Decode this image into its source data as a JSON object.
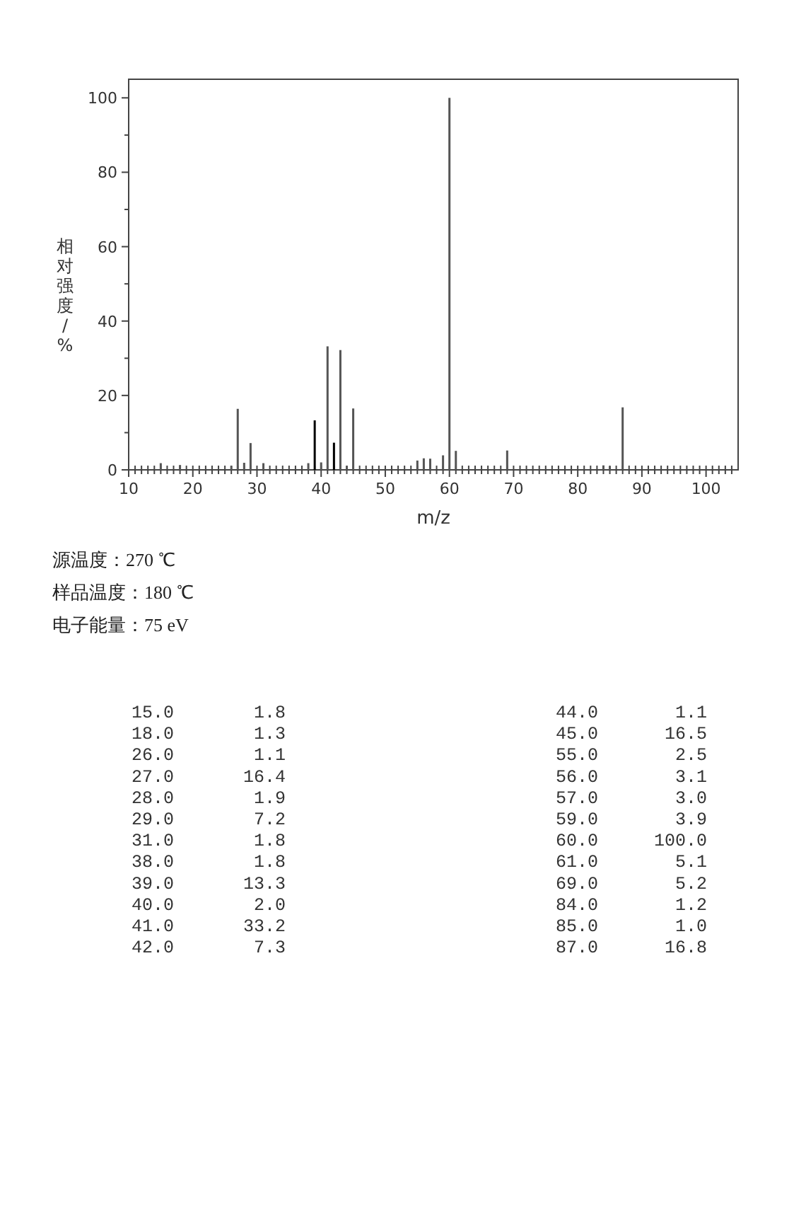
{
  "chart_data": {
    "type": "bar",
    "xlabel": "m/z",
    "ylabel": "相对强度/%",
    "x": [
      15,
      18,
      26,
      27,
      28,
      29,
      31,
      38,
      39,
      40,
      41,
      42,
      43,
      44,
      45,
      55,
      56,
      57,
      59,
      60,
      61,
      69,
      84,
      85,
      87
    ],
    "values": [
      1.8,
      1.3,
      1.1,
      16.4,
      1.9,
      7.2,
      1.8,
      1.8,
      13.3,
      2.0,
      33.2,
      7.3,
      32.2,
      1.1,
      16.5,
      2.5,
      3.1,
      3.0,
      3.9,
      100.0,
      5.1,
      5.2,
      1.2,
      1.0,
      16.8
    ],
    "colors": [
      "#555555",
      "#555555",
      "#555555",
      "#555555",
      "#555555",
      "#555555",
      "#555555",
      "#555555",
      "#000000",
      "#555555",
      "#555555",
      "#000000",
      "#555555",
      "#555555",
      "#555555",
      "#555555",
      "#555555",
      "#555555",
      "#555555",
      "#555555",
      "#555555",
      "#555555",
      "#555555",
      "#555555",
      "#555555"
    ],
    "xlim": [
      10,
      105
    ],
    "xticks": [
      10,
      {
        "value": 11,
        "label": null
      },
      {
        "value": 12,
        "label": null
      },
      {
        "value": 13,
        "label": null
      },
      {
        "value": 14,
        "label": null
      },
      {
        "value": 15,
        "label": null
      },
      {
        "value": 16,
        "label": null
      },
      {
        "value": 17,
        "label": null
      },
      {
        "value": 18,
        "label": null
      },
      {
        "value": 19,
        "label": null
      },
      20,
      {
        "value": 21,
        "label": null
      },
      {
        "value": 22,
        "label": null
      },
      {
        "value": 23,
        "label": null
      },
      {
        "value": 24,
        "label": null
      },
      {
        "value": 25,
        "label": null
      },
      {
        "value": 26,
        "label": null
      },
      {
        "value": 27,
        "label": null
      },
      {
        "value": 28,
        "label": null
      },
      {
        "value": 29,
        "label": null
      },
      30,
      {
        "value": 31,
        "label": null
      },
      {
        "value": 32,
        "label": null
      },
      {
        "value": 33,
        "label": null
      },
      {
        "value": 34,
        "label": null
      },
      {
        "value": 35,
        "label": null
      },
      {
        "value": 36,
        "label": null
      },
      {
        "value": 37,
        "label": null
      },
      {
        "value": 38,
        "label": null
      },
      {
        "value": 39,
        "label": null
      },
      40,
      {
        "value": 41,
        "label": null
      },
      {
        "value": 42,
        "label": null
      },
      {
        "value": 43,
        "label": null
      },
      {
        "value": 44,
        "label": null
      },
      {
        "value": 45,
        "label": null
      },
      {
        "value": 46,
        "label": null
      },
      {
        "value": 47,
        "label": null
      },
      {
        "value": 48,
        "label": null
      },
      {
        "value": 49,
        "label": null
      },
      50,
      {
        "value": 51,
        "label": null
      },
      {
        "value": 52,
        "label": null
      },
      {
        "value": 53,
        "label": null
      },
      {
        "value": 54,
        "label": null
      },
      {
        "value": 55,
        "label": null
      },
      {
        "value": 56,
        "label": null
      },
      {
        "value": 57,
        "label": null
      },
      {
        "value": 58,
        "label": null
      },
      {
        "value": 59,
        "label": null
      },
      60,
      {
        "value": 61,
        "label": null
      },
      {
        "value": 62,
        "label": null
      },
      {
        "value": 63,
        "label": null
      },
      {
        "value": 64,
        "label": null
      },
      {
        "value": 65,
        "label": null
      },
      {
        "value": 66,
        "label": null
      },
      {
        "value": 67,
        "label": null
      },
      {
        "value": 68,
        "label": null
      },
      {
        "value": 69,
        "label": null
      },
      70,
      {
        "value": 71,
        "label": null
      },
      {
        "value": 72,
        "label": null
      },
      {
        "value": 73,
        "label": null
      },
      {
        "value": 74,
        "label": null
      },
      {
        "value": 75,
        "label": null
      },
      {
        "value": 76,
        "label": null
      },
      {
        "value": 77,
        "label": null
      },
      {
        "value": 78,
        "label": null
      },
      {
        "value": 79,
        "label": null
      },
      80,
      {
        "value": 81,
        "label": null
      },
      {
        "value": 82,
        "label": null
      },
      {
        "value": 83,
        "label": null
      },
      {
        "value": 84,
        "label": null
      },
      {
        "value": 85,
        "label": null
      },
      {
        "value": 86,
        "label": null
      },
      {
        "value": 87,
        "label": null
      },
      {
        "value": 88,
        "label": null
      },
      {
        "value": 89,
        "label": null
      },
      90,
      {
        "value": 91,
        "label": null
      },
      {
        "value": 92,
        "label": null
      },
      {
        "value": 93,
        "label": null
      },
      {
        "value": 94,
        "label": null
      },
      {
        "value": 95,
        "label": null
      },
      {
        "value": 96,
        "label": null
      },
      {
        "value": 97,
        "label": null
      },
      {
        "value": 98,
        "label": null
      },
      {
        "value": 99,
        "label": null
      },
      100,
      {
        "value": 101,
        "label": null
      },
      {
        "value": 102,
        "label": null
      },
      {
        "value": 103,
        "label": null
      },
      {
        "value": 104,
        "label": null
      }
    ],
    "ylim": [
      0,
      105
    ],
    "yticks": [
      0,
      {
        "value": 10,
        "label": null
      },
      20,
      {
        "value": 30,
        "label": null
      },
      40,
      {
        "value": 50,
        "label": null
      },
      60,
      {
        "value": 70,
        "label": null
      },
      80,
      {
        "value": 90,
        "label": null
      },
      100
    ],
    "annotations": [
      "源温度：270 ℃",
      "样品温度：180 ℃",
      "电子能量：75 eV",
      "15.0",
      "1.8",
      "18.0",
      "1.3",
      "26.0",
      "1.1",
      "27.0",
      "16.4",
      "28.0",
      "1.9",
      "29.0",
      "7.2",
      "31.0",
      "1.8",
      "38.0",
      "1.8",
      "39.0",
      "13.3",
      "40.0",
      "2.0",
      "41.0",
      "33.2",
      "42.0",
      "7.3",
      "44.0",
      "1.1",
      "45.0",
      "16.5",
      "55.0",
      "2.5",
      "56.0",
      "3.1",
      "57.0",
      "3.0",
      "59.0",
      "3.9",
      "60.0",
      "100.0",
      "61.0",
      "5.1",
      "69.0",
      "5.2",
      "84.0",
      "1.2",
      "85.0",
      "1.0",
      "87.0",
      "16.8"
    ]
  }
}
